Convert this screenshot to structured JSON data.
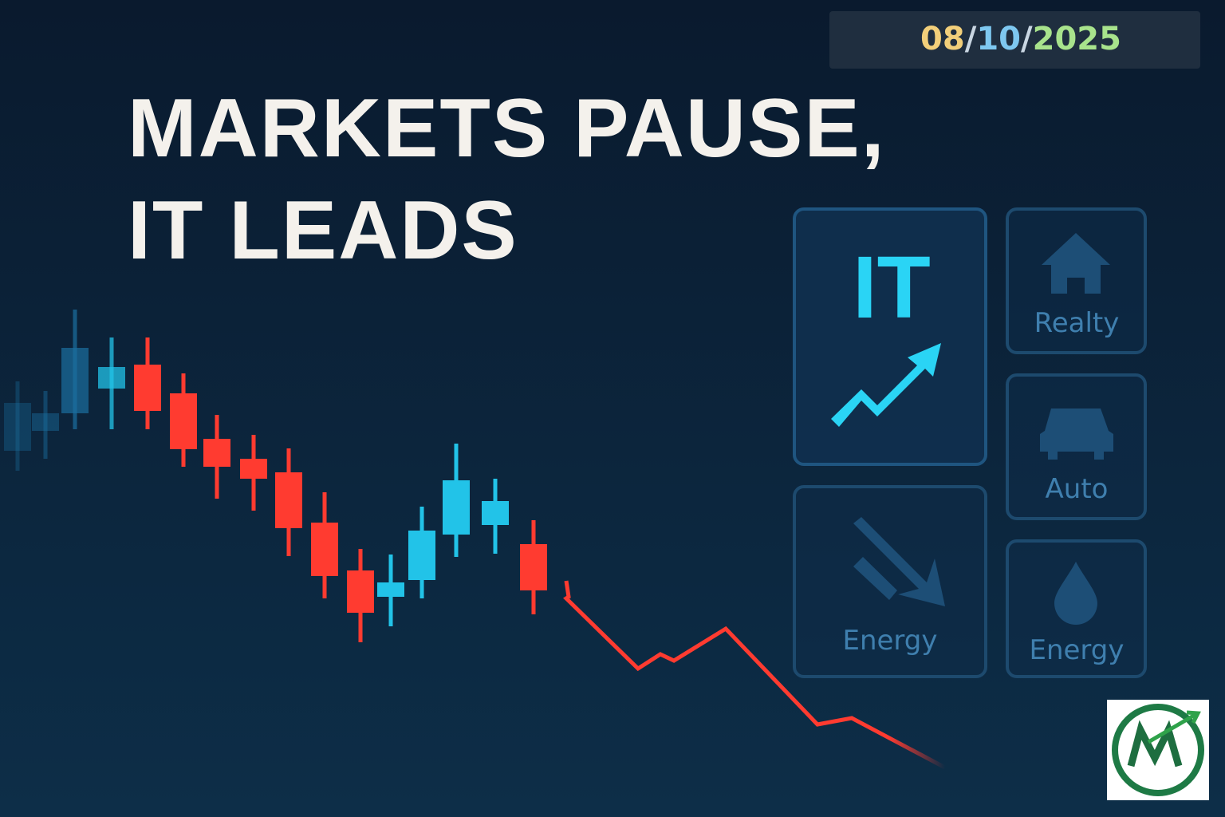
{
  "date": {
    "parts": [
      "08",
      "10",
      "2025"
    ],
    "separator": "/"
  },
  "headline": {
    "lines": [
      "MARKETS PAUSE,",
      "IT LEADS"
    ]
  },
  "tiles": [
    {
      "label": "IT"
    },
    {
      "label": "Realty"
    },
    {
      "label": "Auto"
    },
    {
      "label": "Energy"
    },
    {
      "label": "Energy"
    }
  ]
}
